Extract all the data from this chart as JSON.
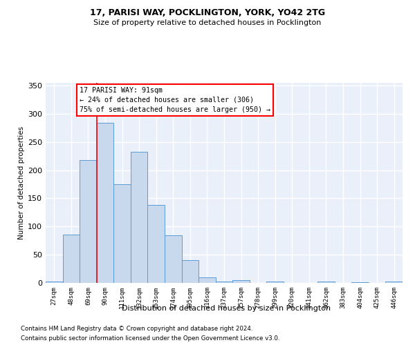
{
  "title1": "17, PARISI WAY, POCKLINGTON, YORK, YO42 2TG",
  "title2": "Size of property relative to detached houses in Pocklington",
  "xlabel": "Distribution of detached houses by size in Pocklington",
  "ylabel": "Number of detached properties",
  "footnote1": "Contains HM Land Registry data © Crown copyright and database right 2024.",
  "footnote2": "Contains public sector information licensed under the Open Government Licence v3.0.",
  "annotation_line1": "17 PARISI WAY: 91sqm",
  "annotation_line2": "← 24% of detached houses are smaller (306)",
  "annotation_line3": "75% of semi-detached houses are larger (950) →",
  "bar_color": "#c8d9ee",
  "bar_edge_color": "#5b9bd5",
  "background_color": "#eaf0f9",
  "grid_color": "#ffffff",
  "red_line_index": 3,
  "categories": [
    "27sqm",
    "48sqm",
    "69sqm",
    "90sqm",
    "111sqm",
    "132sqm",
    "153sqm",
    "174sqm",
    "195sqm",
    "216sqm",
    "237sqm",
    "257sqm",
    "278sqm",
    "299sqm",
    "320sqm",
    "341sqm",
    "362sqm",
    "383sqm",
    "404sqm",
    "425sqm",
    "446sqm"
  ],
  "values": [
    3,
    86,
    218,
    284,
    175,
    232,
    138,
    85,
    40,
    10,
    3,
    5,
    0,
    3,
    0,
    0,
    2,
    0,
    1,
    0,
    2
  ],
  "ylim": [
    0,
    355
  ],
  "yticks": [
    0,
    50,
    100,
    150,
    200,
    250,
    300,
    350
  ]
}
